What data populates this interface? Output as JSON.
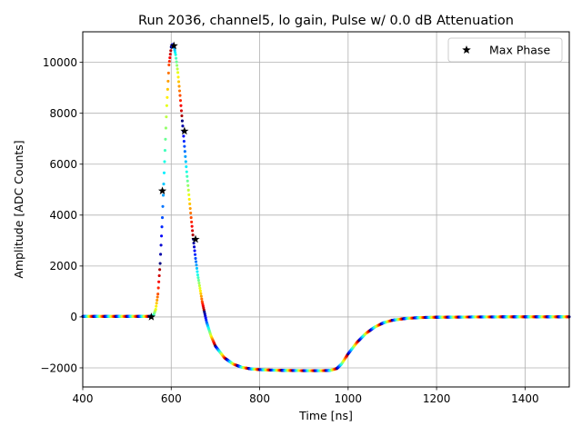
{
  "chart_data": {
    "type": "scatter",
    "title": "Run 2036, channel5, lo gain, Pulse w/ 0.0 dB Attenuation",
    "xlabel": "Time [ns]",
    "ylabel": "Amplitude [ADC Counts]",
    "xlim": [
      400,
      1500
    ],
    "ylim": [
      -2750,
      11200
    ],
    "xticks": [
      400,
      600,
      800,
      1000,
      1200,
      1400
    ],
    "xtick_labels": [
      "400",
      "600",
      "800",
      "1000",
      "1200",
      "1400"
    ],
    "yticks": [
      -2000,
      0,
      2000,
      4000,
      6000,
      8000,
      10000
    ],
    "ytick_labels": [
      "−2000",
      "0",
      "2000",
      "4000",
      "6000",
      "8000",
      "10000"
    ],
    "grid": true,
    "legend": {
      "position": "top-right",
      "entries": [
        "Max Phase"
      ]
    },
    "colormap": "jet",
    "pulse_profile": {
      "x": [
        400,
        550,
        560,
        565,
        570,
        575,
        580,
        585,
        590,
        595,
        600,
        603,
        606,
        610,
        615,
        620,
        625,
        630,
        635,
        640,
        645,
        650,
        655,
        660,
        670,
        680,
        690,
        700,
        720,
        740,
        760,
        780,
        800,
        830,
        860,
        900,
        940,
        960,
        975,
        985,
        1000,
        1020,
        1040,
        1060,
        1080,
        1100,
        1130,
        1160,
        1200,
        1300,
        1400,
        1500
      ],
      "y": [
        20,
        20,
        60,
        300,
        900,
        2100,
        3900,
        6100,
        8300,
        9900,
        10600,
        10700,
        10650,
        10300,
        9600,
        8700,
        7700,
        6700,
        5700,
        4800,
        3900,
        3050,
        2300,
        1650,
        600,
        -200,
        -750,
        -1150,
        -1600,
        -1850,
        -1980,
        -2040,
        -2070,
        -2090,
        -2100,
        -2110,
        -2110,
        -2100,
        -2020,
        -1850,
        -1450,
        -1000,
        -650,
        -400,
        -230,
        -130,
        -60,
        -25,
        -10,
        0,
        5,
        5
      ]
    },
    "series": [
      {
        "name": "Max Phase",
        "marker": "star",
        "color": "#000000",
        "x": [
          555,
          580,
          606,
          630,
          655
        ],
        "y": [
          0,
          4950,
          10650,
          7300,
          3050
        ]
      }
    ]
  }
}
